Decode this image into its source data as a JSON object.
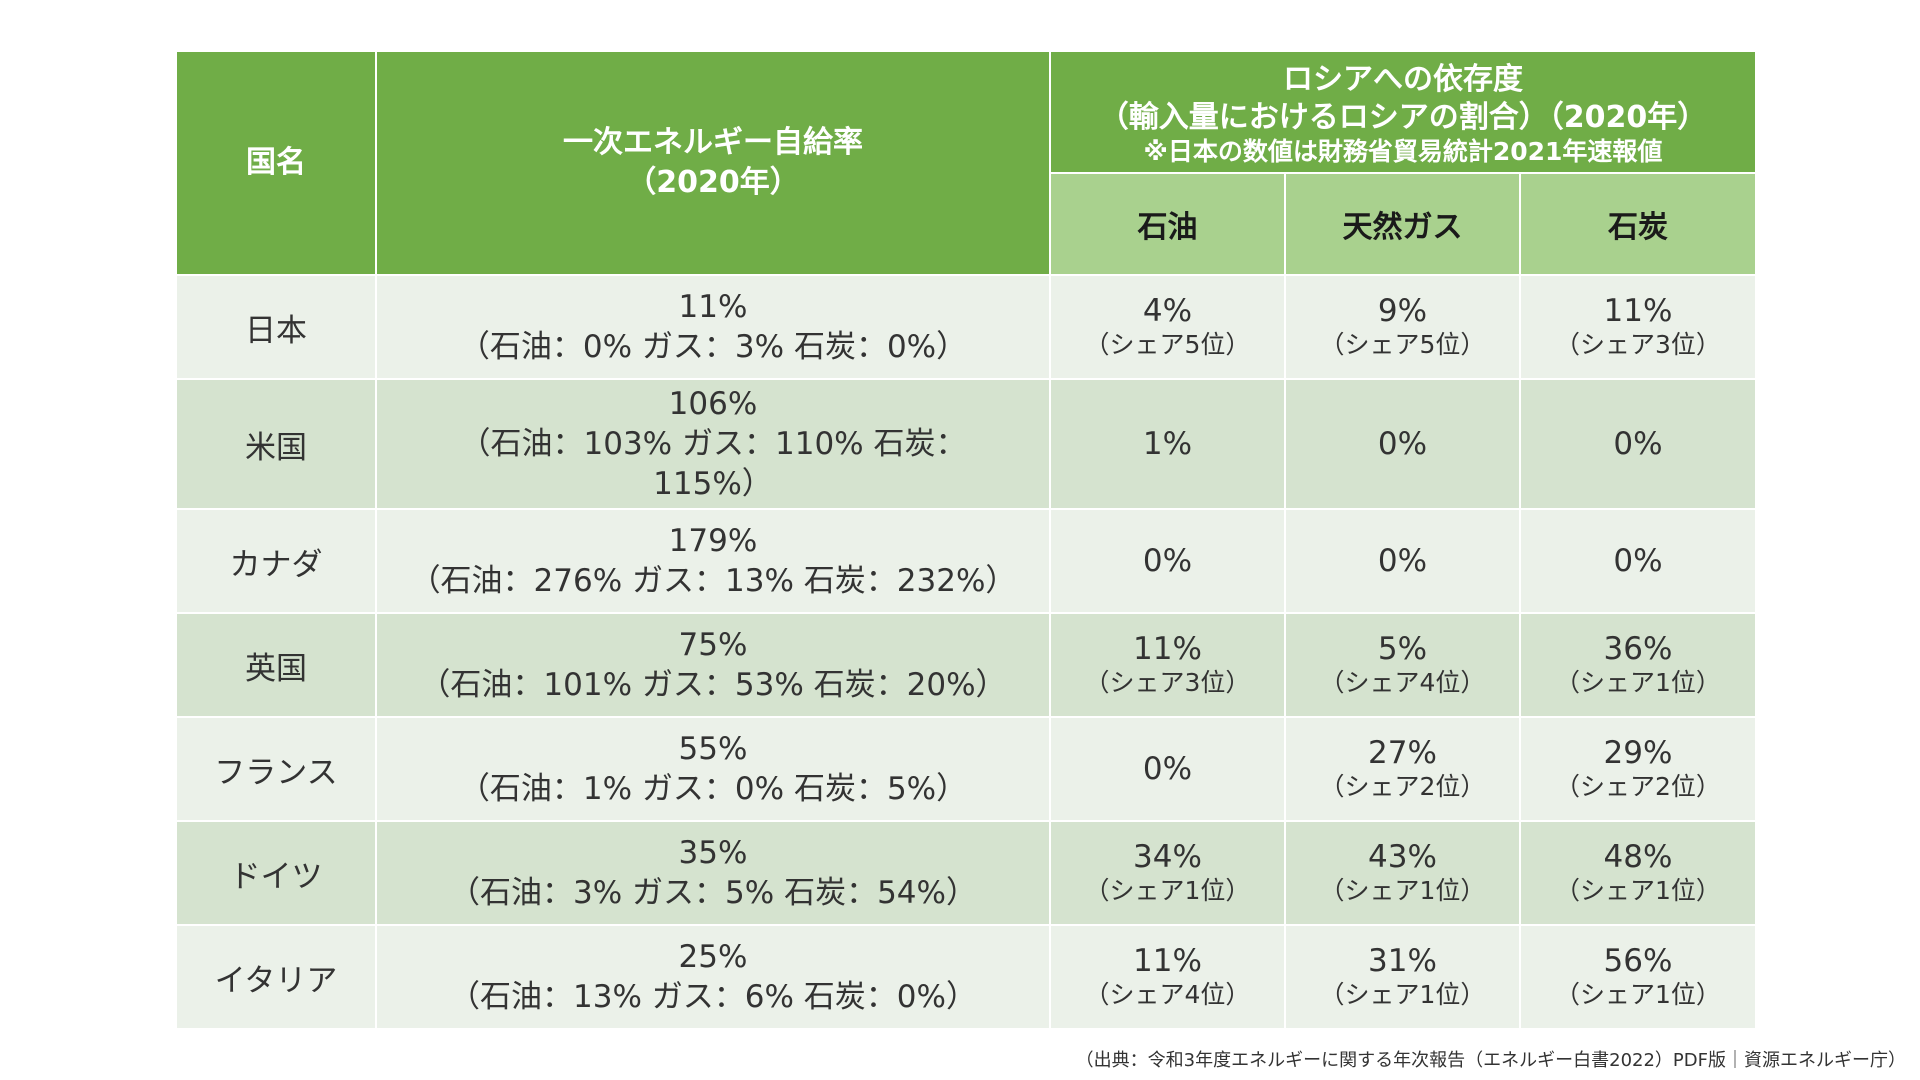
{
  "header": {
    "country": "国名",
    "self_sufficiency_line1": "一次エネルギー自給率",
    "self_sufficiency_line2": "（2020年）",
    "russia_line1": "ロシアへの依存度",
    "russia_line2": "（輸入量におけるロシアの割合）（2020年）",
    "russia_note": "※日本の数値は財務省貿易統計2021年速報値",
    "oil": "石油",
    "gas": "天然ガス",
    "coal": "石炭"
  },
  "rows": [
    {
      "country": "日本",
      "self_total": "11%",
      "self_detail": "（石油：0% ガス：3% 石炭：0%）",
      "oil": "4%",
      "oil_rank": "（シェア5位）",
      "gas": "9%",
      "gas_rank": "（シェア5位）",
      "coal": "11%",
      "coal_rank": "（シェア3位）"
    },
    {
      "country": "米国",
      "self_total": "106%",
      "self_detail": "（石油：103% ガス：110% 石炭：115%）",
      "oil": "1%",
      "oil_rank": "",
      "gas": "0%",
      "gas_rank": "",
      "coal": "0%",
      "coal_rank": ""
    },
    {
      "country": "カナダ",
      "self_total": "179%",
      "self_detail": "（石油：276% ガス：13% 石炭：232%）",
      "oil": "0%",
      "oil_rank": "",
      "gas": "0%",
      "gas_rank": "",
      "coal": "0%",
      "coal_rank": ""
    },
    {
      "country": "英国",
      "self_total": "75%",
      "self_detail": "（石油：101% ガス：53% 石炭：20%）",
      "oil": "11%",
      "oil_rank": "（シェア3位）",
      "gas": "5%",
      "gas_rank": "（シェア4位）",
      "coal": "36%",
      "coal_rank": "（シェア1位）"
    },
    {
      "country": "フランス",
      "self_total": "55%",
      "self_detail": "（石油：1% ガス：0% 石炭：5%）",
      "oil": "0%",
      "oil_rank": "",
      "gas": "27%",
      "gas_rank": "（シェア2位）",
      "coal": "29%",
      "coal_rank": "（シェア2位）"
    },
    {
      "country": "ドイツ",
      "self_total": "35%",
      "self_detail": "（石油：3% ガス：5% 石炭：54%）",
      "oil": "34%",
      "oil_rank": "（シェア1位）",
      "gas": "43%",
      "gas_rank": "（シェア1位）",
      "coal": "48%",
      "coal_rank": "（シェア1位）"
    },
    {
      "country": "イタリア",
      "self_total": "25%",
      "self_detail": "（石油：13% ガス：6% 石炭：0%）",
      "oil": "11%",
      "oil_rank": "（シェア4位）",
      "gas": "31%",
      "gas_rank": "（シェア1位）",
      "coal": "56%",
      "coal_rank": "（シェア1位）"
    }
  ],
  "source": "（出典：令和3年度エネルギーに関する年次報告（エネルギー白書2022）PDF版｜資源エネルギー庁）",
  "colors": {
    "header_dark": "#70ad47",
    "header_light": "#a9d18e",
    "row_light": "#ebf1e9",
    "row_dark": "#d5e3cf"
  }
}
